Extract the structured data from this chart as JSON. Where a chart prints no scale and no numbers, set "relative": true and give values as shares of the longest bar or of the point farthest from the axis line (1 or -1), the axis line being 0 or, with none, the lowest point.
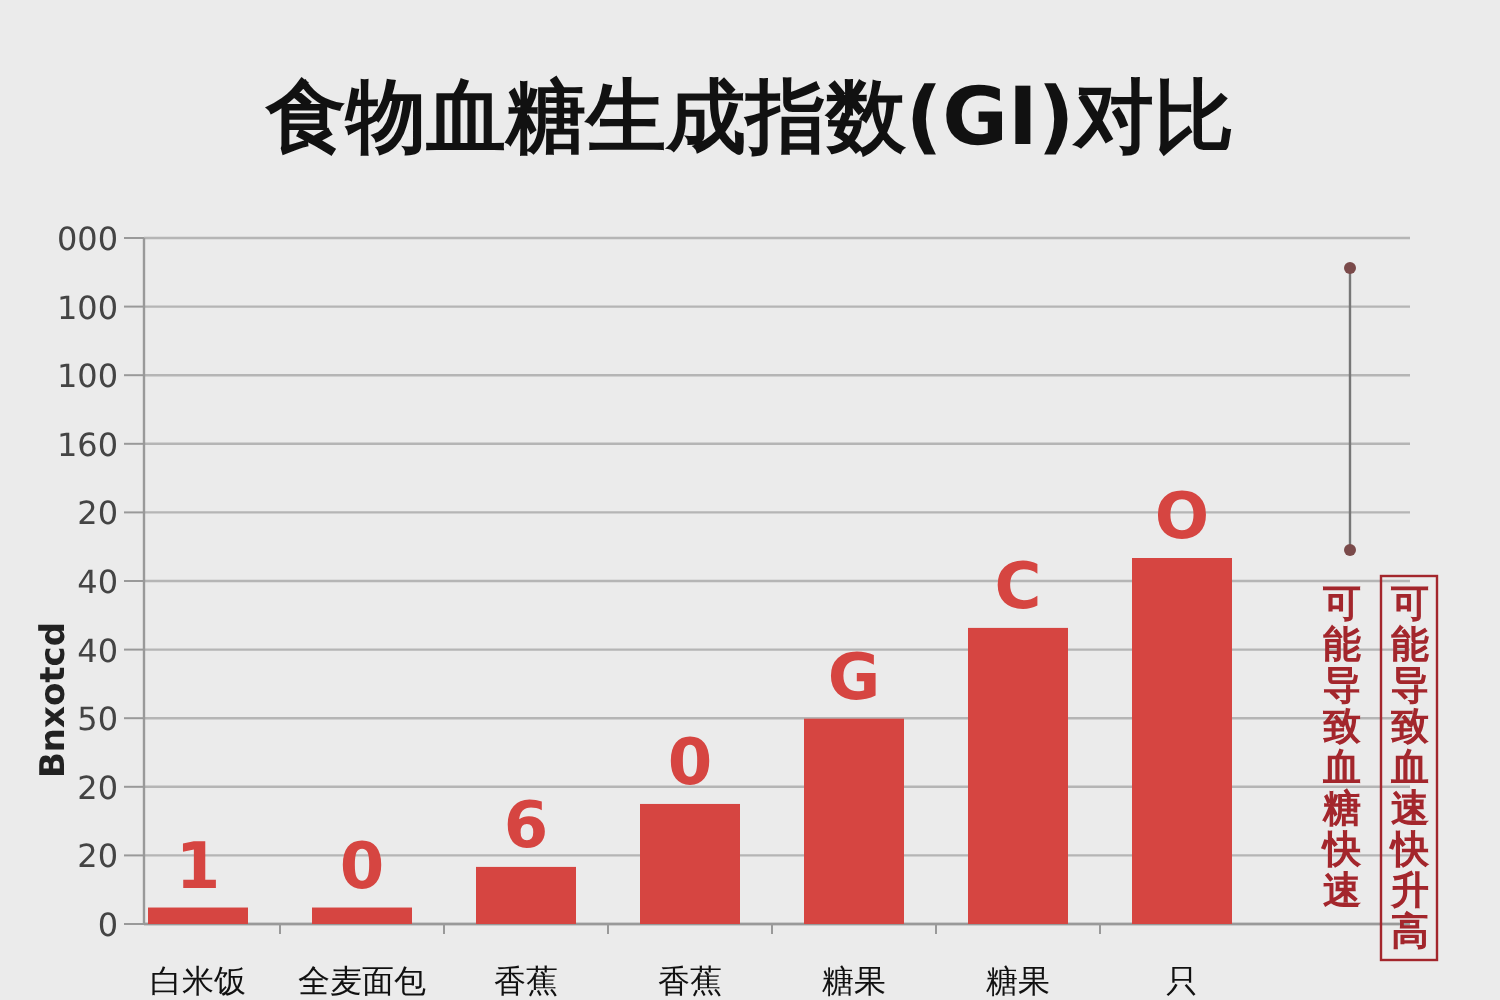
{
  "chart_data": {
    "type": "bar",
    "title": "食物血糖生成指数(GI)对比",
    "ylabel": "Bnxotcd",
    "relative": true,
    "categories": [
      "白米饭",
      "全麦面包",
      "香蕉",
      "香蕉",
      "糖果",
      "糖果",
      "只"
    ],
    "values": [
      0.045,
      0.045,
      0.156,
      0.328,
      0.561,
      0.809,
      1
    ],
    "color": "#d64541",
    "grid": true,
    "annotations": [
      "可能导致血糖快速",
      "可能导致血速快升高",
      "0",
      "20",
      "20",
      "50",
      "40",
      "40",
      "20",
      "160",
      "100",
      "100",
      "000",
      "1",
      "0",
      "6",
      "0",
      "G",
      "C",
      "O"
    ]
  }
}
